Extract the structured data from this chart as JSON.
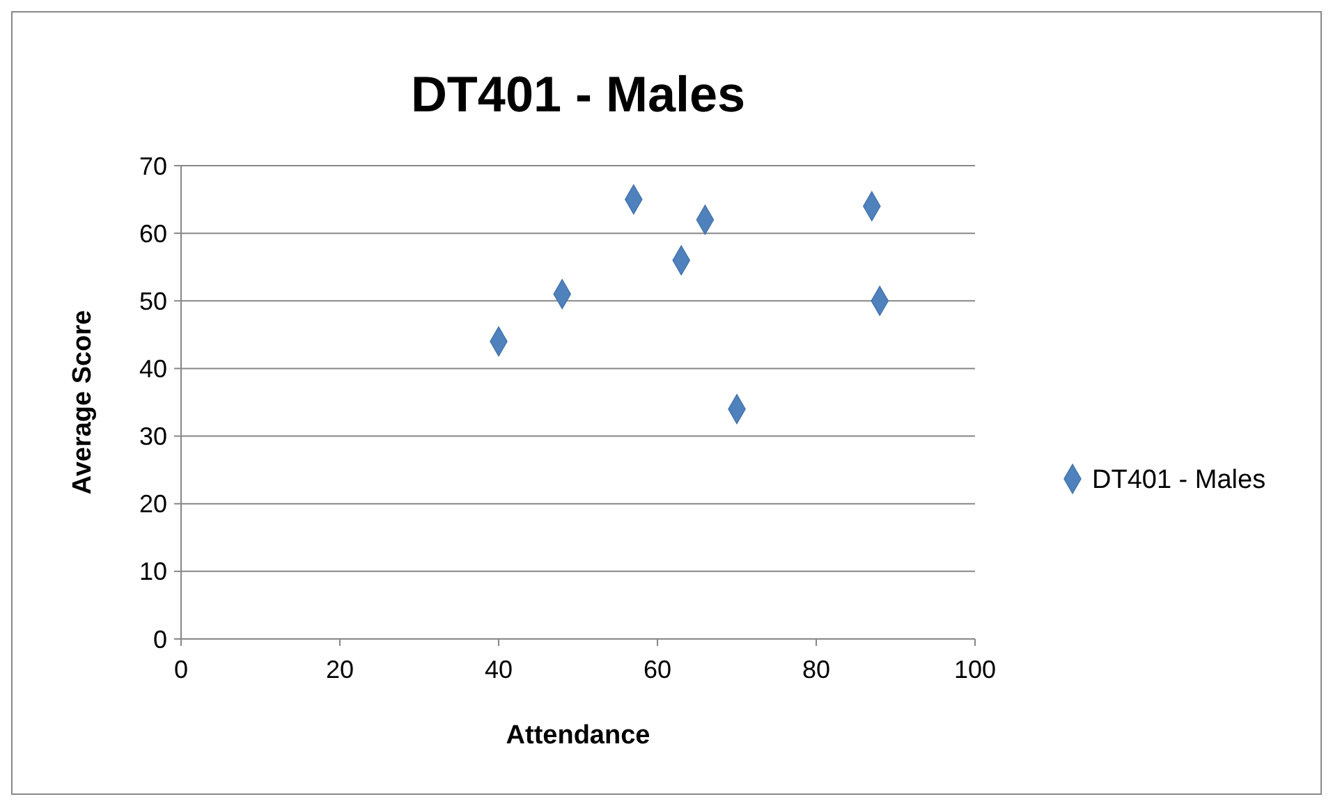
{
  "chart_data": {
    "type": "scatter",
    "title": "DT401 - Males",
    "xlabel": "Attendance",
    "ylabel": "Average Score",
    "x": [
      40,
      48,
      57,
      63,
      66,
      70,
      87,
      88
    ],
    "series": [
      {
        "name": "DT401 - Males",
        "color": "#4f81bd",
        "values": [
          44,
          51,
          65,
          56,
          62,
          34,
          64,
          50
        ]
      }
    ],
    "xlim": [
      0,
      100
    ],
    "xticks": [
      0,
      20,
      40,
      60,
      80,
      100
    ],
    "ylim": [
      0,
      70
    ],
    "yticks": [
      0,
      10,
      20,
      30,
      40,
      50,
      60,
      70
    ],
    "grid": "y",
    "legend": "right",
    "marker": "diamond"
  }
}
